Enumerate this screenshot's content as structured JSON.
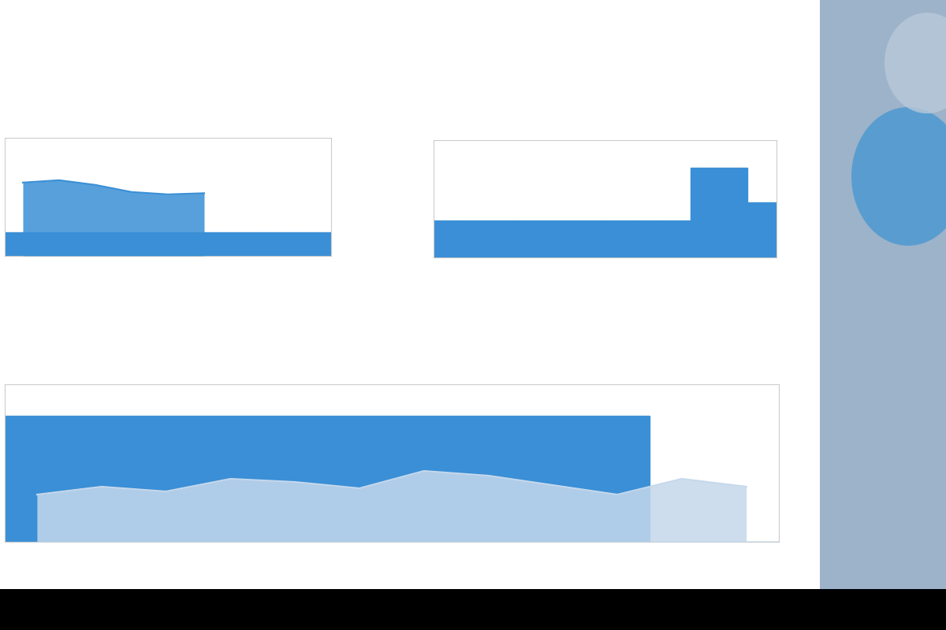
{
  "chart_data": [
    {
      "type": "area",
      "tick_labels": false,
      "ylim": [
        0,
        100
      ],
      "categories": [
        null,
        null,
        null,
        null,
        null,
        null,
        null,
        null,
        null
      ],
      "series": [
        {
          "type": "area",
          "color": "#3a8fd6",
          "values": [
            62,
            64,
            60,
            54,
            52,
            53,
            null,
            null,
            null
          ]
        },
        {
          "type": "bar",
          "color": "#3a8fd6",
          "values": [
            20,
            20,
            20,
            20,
            20,
            20,
            20,
            20,
            20
          ]
        }
      ]
    },
    {
      "type": "bar",
      "tick_labels": false,
      "ylim": [
        0,
        100
      ],
      "categories": [
        null,
        null,
        null,
        null,
        null,
        null,
        null,
        null,
        null,
        null,
        null,
        null
      ],
      "color": "#3a8fd6",
      "values": [
        32,
        32,
        32,
        32,
        32,
        32,
        32,
        32,
        32,
        77,
        77,
        47
      ]
    },
    {
      "type": "bar",
      "tick_labels": false,
      "ylim": [
        0,
        100
      ],
      "categories": [
        null,
        null,
        null,
        null,
        null,
        null,
        null,
        null,
        null,
        null,
        null,
        null
      ],
      "series": [
        {
          "type": "bar",
          "color": "#3a8fd6",
          "values": [
            80,
            80,
            80,
            80,
            80,
            80,
            80,
            80,
            80,
            80,
            0,
            0
          ]
        },
        {
          "type": "area",
          "color": "#c5d8ec",
          "values": [
            30,
            35,
            32,
            40,
            38,
            34,
            45,
            42,
            36,
            30,
            40,
            35
          ]
        }
      ]
    }
  ]
}
